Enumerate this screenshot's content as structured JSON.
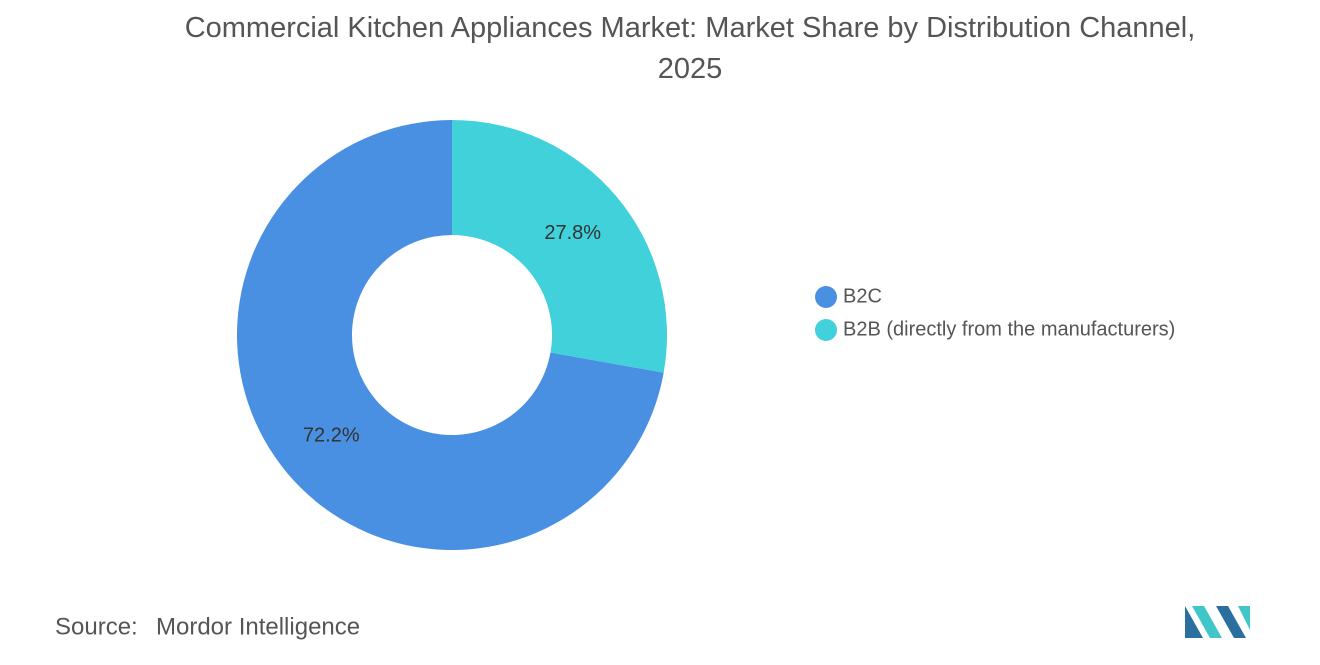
{
  "chart_data": {
    "type": "pie",
    "donut": true,
    "title": "Commercial Kitchen Appliances Market: Market Share by Distribution Channel, 2025",
    "categories": [
      "B2C",
      "B2B (directly from the manufacturers)"
    ],
    "values": [
      72.2,
      27.8
    ],
    "value_labels": [
      "72.2%",
      "27.8%"
    ],
    "colors": [
      "#4a90e2",
      "#41d1da"
    ],
    "legend": "right",
    "source": {
      "label": "Source:",
      "text": "Mordor Intelligence"
    }
  }
}
